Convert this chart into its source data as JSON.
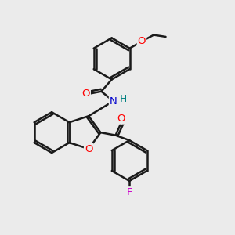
{
  "bg_color": "#ebebeb",
  "bond_color": "#1a1a1a",
  "bond_width": 1.8,
  "atom_colors": {
    "O": "#ff0000",
    "N": "#0000cc",
    "F": "#cc00cc",
    "H": "#008080",
    "C": "#1a1a1a"
  },
  "font_size": 9.5,
  "fig_size": [
    3.0,
    3.0
  ],
  "dpi": 100
}
